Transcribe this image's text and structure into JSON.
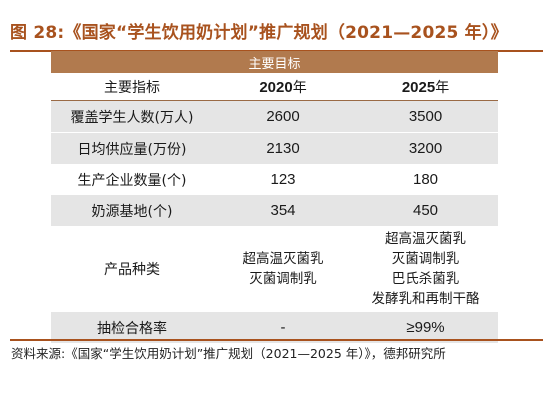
{
  "figure_title": "图 28:《国家“学生饮用奶计划”推广规划（2021—2025 年）》",
  "table": {
    "band_header": "主要目标",
    "column_headers": [
      {
        "label": "主要指标"
      },
      {
        "num": "2020",
        "suffix": "年"
      },
      {
        "num": "2025",
        "suffix": "年"
      }
    ],
    "rows": [
      {
        "label": "覆盖学生人数(万人)",
        "v2020": "2600",
        "v2025": "3500"
      },
      {
        "label": "日均供应量(万份)",
        "v2020": "2130",
        "v2025": "3200"
      },
      {
        "label": "生产企业数量(个)",
        "v2020": "123",
        "v2025": "180"
      },
      {
        "label": "奶源基地(个)",
        "v2020": "354",
        "v2025": "450"
      }
    ],
    "product_row": {
      "label": "产品种类",
      "v2020": [
        "超高温灭菌乳",
        "灭菌调制乳"
      ],
      "v2025": [
        "超高温灭菌乳",
        "灭菌调制乳",
        "巴氏杀菌乳",
        "发酵乳和再制干酪"
      ]
    },
    "pass_row": {
      "label": "抽检合格率",
      "v2020": "-",
      "v2025": "≥99%"
    }
  },
  "source": "资料来源:《国家“学生饮用奶计划”推广规划（2021—2025 年）》，德邦研究所"
}
